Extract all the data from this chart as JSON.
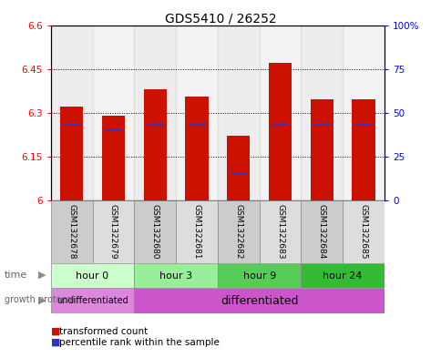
{
  "title": "GDS5410 / 26252",
  "samples": [
    "GSM1322678",
    "GSM1322679",
    "GSM1322680",
    "GSM1322681",
    "GSM1322682",
    "GSM1322683",
    "GSM1322684",
    "GSM1322685"
  ],
  "transformed_counts": [
    6.32,
    6.29,
    6.38,
    6.355,
    6.22,
    6.47,
    6.345,
    6.345
  ],
  "percentile_ranks": [
    43,
    40,
    43,
    43,
    15,
    43,
    43,
    43
  ],
  "ylim_left": [
    6.0,
    6.6
  ],
  "ylim_right": [
    0,
    100
  ],
  "yticks_left": [
    6.0,
    6.15,
    6.3,
    6.45,
    6.6
  ],
  "yticks_right": [
    0,
    25,
    50,
    75,
    100
  ],
  "ytick_labels_left": [
    "6",
    "6.15",
    "6.3",
    "6.45",
    "6.6"
  ],
  "ytick_labels_right": [
    "0",
    "25",
    "50",
    "75",
    "100%"
  ],
  "bar_color": "#cc1100",
  "percentile_color": "#3333bb",
  "bar_bottom": 6.0,
  "groups": [
    {
      "label": "hour 0",
      "samples": [
        0,
        1
      ],
      "color": "#ccffcc"
    },
    {
      "label": "hour 3",
      "samples": [
        2,
        3
      ],
      "color": "#99ee99"
    },
    {
      "label": "hour 9",
      "samples": [
        4,
        5
      ],
      "color": "#55cc55"
    },
    {
      "label": "hour 24",
      "samples": [
        6,
        7
      ],
      "color": "#33bb33"
    }
  ],
  "protocols": [
    {
      "label": "undifferentiated",
      "samples": [
        0,
        1
      ],
      "color": "#dd88dd"
    },
    {
      "label": "differentiated",
      "samples": [
        2,
        3,
        4,
        5,
        6,
        7
      ],
      "color": "#cc55cc"
    }
  ],
  "legend_items": [
    {
      "label": "transformed count",
      "color": "#cc1100"
    },
    {
      "label": "percentile rank within the sample",
      "color": "#3333bb"
    }
  ],
  "background_color": "#ffffff",
  "sample_bg_even": "#cccccc",
  "sample_bg_odd": "#dddddd",
  "border_color": "#000000"
}
